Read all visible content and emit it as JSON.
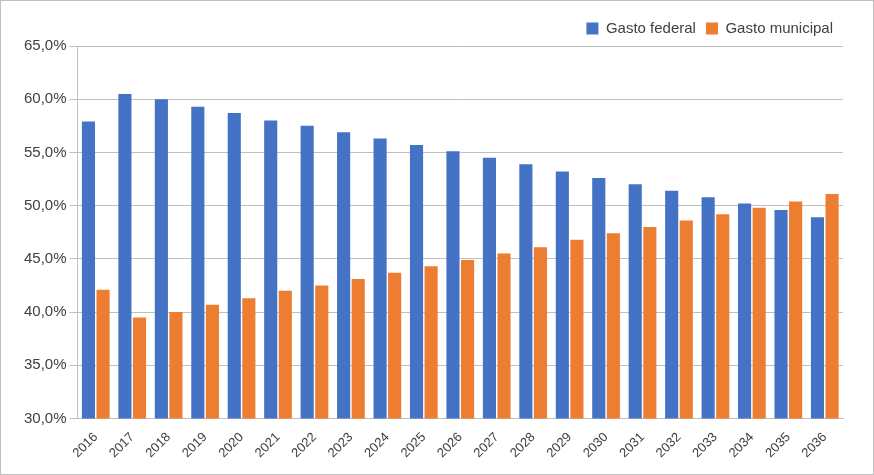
{
  "chart_data": {
    "type": "bar",
    "categories": [
      "2016",
      "2017",
      "2018",
      "2019",
      "2020",
      "2021",
      "2022",
      "2023",
      "2024",
      "2025",
      "2026",
      "2027",
      "2028",
      "2029",
      "2030",
      "2031",
      "2032",
      "2033",
      "2034",
      "2035",
      "2036"
    ],
    "series": [
      {
        "name": "Gasto federal",
        "color": "#4472c4",
        "values": [
          57.9,
          60.5,
          60.0,
          59.3,
          58.7,
          58.0,
          57.5,
          56.9,
          56.3,
          55.7,
          55.1,
          54.5,
          53.9,
          53.2,
          52.6,
          52.0,
          51.4,
          50.8,
          50.2,
          49.6,
          48.9
        ]
      },
      {
        "name": "Gasto municipal",
        "color": "#ed7d31",
        "values": [
          42.1,
          39.5,
          40.0,
          40.7,
          41.3,
          42.0,
          42.5,
          43.1,
          43.7,
          44.3,
          44.9,
          45.5,
          46.1,
          46.8,
          47.4,
          48.0,
          48.6,
          49.2,
          49.8,
          50.4,
          51.1
        ]
      }
    ],
    "ylim": [
      30,
      65
    ],
    "yticks": [
      {
        "value": 30,
        "label": "30,0%"
      },
      {
        "value": 35,
        "label": "35,0%"
      },
      {
        "value": 40,
        "label": "40,0%"
      },
      {
        "value": 45,
        "label": "45,0%"
      },
      {
        "value": 50,
        "label": "50,0%"
      },
      {
        "value": 55,
        "label": "55,0%"
      },
      {
        "value": 60,
        "label": "60,0%"
      },
      {
        "value": 65,
        "label": "65,0%"
      }
    ],
    "grid": true,
    "legend": "top-right"
  }
}
